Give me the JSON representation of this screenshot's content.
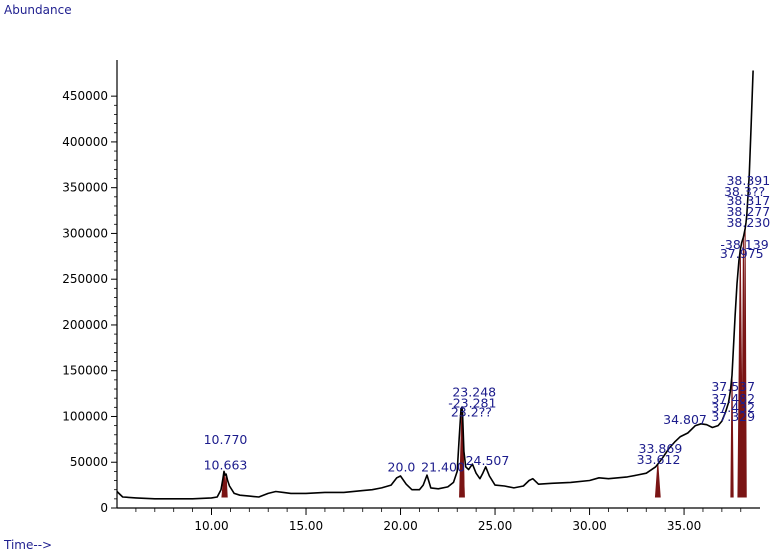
{
  "chart_data": {
    "type": "line",
    "ylabel": "Abundance",
    "xlabel": "Time-->",
    "xlim": [
      5.0,
      38.7
    ],
    "ylim": [
      0,
      460000
    ],
    "x_ticks": [
      "10.00",
      "15.00",
      "20.00",
      "25.00",
      "30.00",
      "35.00"
    ],
    "x_tick_values": [
      10,
      15,
      20,
      25,
      30,
      35
    ],
    "y_ticks": [
      "0",
      "50000",
      "100000",
      "150000",
      "200000",
      "250000",
      "300000",
      "350000",
      "400000",
      "450000"
    ],
    "y_tick_values": [
      0,
      50000,
      100000,
      150000,
      200000,
      250000,
      300000,
      350000,
      400000,
      450000
    ],
    "series": [
      {
        "color": "#000000",
        "x": [
          5.0,
          5.3,
          6.0,
          7.0,
          8.0,
          9.0,
          10.0,
          10.3,
          10.5,
          10.6,
          10.663,
          10.72,
          10.77,
          10.85,
          10.95,
          11.2,
          11.5,
          12.0,
          12.5,
          13.0,
          13.4,
          13.8,
          14.2,
          15.0,
          16.0,
          17.0,
          18.0,
          18.5,
          19.0,
          19.5,
          19.8,
          20.0,
          20.3,
          20.6,
          21.0,
          21.2,
          21.4,
          21.6,
          22.0,
          22.5,
          22.8,
          23.0,
          23.1,
          23.2,
          23.248,
          23.281,
          23.35,
          23.45,
          23.6,
          23.8,
          24.0,
          24.2,
          24.35,
          24.507,
          24.7,
          25.0,
          25.5,
          26.0,
          26.5,
          26.8,
          27.0,
          27.3,
          28.0,
          29.0,
          30.0,
          30.5,
          31.0,
          32.0,
          32.5,
          33.0,
          33.5,
          33.612,
          33.869,
          34.2,
          34.5,
          34.807,
          35.2,
          35.6,
          35.9,
          36.2,
          36.5,
          36.8,
          37.0,
          37.2,
          37.35,
          37.45,
          37.537,
          37.6,
          37.7,
          37.8,
          37.9,
          37.975,
          38.05,
          38.139,
          38.23,
          38.277,
          38.317,
          38.391,
          38.45,
          38.55,
          38.65
        ],
        "y": [
          18000,
          12000,
          11000,
          10000,
          10000,
          10000,
          11000,
          12000,
          20000,
          32000,
          40000,
          36000,
          37000,
          30000,
          24000,
          16000,
          14000,
          13000,
          12000,
          16000,
          18000,
          17000,
          16000,
          16000,
          17000,
          17000,
          19000,
          20000,
          22000,
          25000,
          33000,
          35000,
          26000,
          20000,
          20000,
          25000,
          36000,
          22000,
          21000,
          23000,
          28000,
          40000,
          75000,
          108000,
          110000,
          105000,
          62000,
          45000,
          42000,
          48000,
          38000,
          32000,
          38000,
          45000,
          35000,
          25000,
          24000,
          22000,
          24000,
          30000,
          32000,
          26000,
          27000,
          28000,
          30000,
          33000,
          32000,
          34000,
          36000,
          38000,
          45000,
          48000,
          55000,
          65000,
          72000,
          78000,
          82000,
          90000,
          92000,
          91000,
          88000,
          90000,
          95000,
          105000,
          115000,
          128000,
          145000,
          170000,
          210000,
          245000,
          270000,
          282000,
          290000,
          296000,
          305000,
          312000,
          320000,
          345000,
          365000,
          420000,
          478000
        ]
      }
    ],
    "peaks": [
      {
        "x": 10.663,
        "y": 40000,
        "w": 0.22,
        "label": "10.663"
      },
      {
        "x": 10.77,
        "y": 37000,
        "w": 0.12,
        "label": "10.770"
      },
      {
        "x": 23.248,
        "y": 110000,
        "w": 0.25,
        "label": "23.248"
      },
      {
        "x": 23.281,
        "y": 105000,
        "w": 0.18,
        "label": "23.281"
      },
      {
        "x": 33.612,
        "y": 48000,
        "w": 0.25,
        "label": "33.612"
      },
      {
        "x": 37.537,
        "y": 145000,
        "w": 0.12,
        "label": "37.537"
      },
      {
        "x": 37.975,
        "y": 282000,
        "w": 0.25,
        "label": "37.975"
      },
      {
        "x": 38.139,
        "y": 296000,
        "w": 0.15,
        "label": "38.139"
      },
      {
        "x": 38.23,
        "y": 305000,
        "w": 0.12,
        "label": "38.230"
      }
    ],
    "annotations": [
      {
        "text": "10.770",
        "x": 10.74,
        "y": 70000,
        "anchor": "middle"
      },
      {
        "text": "10.663",
        "x": 10.74,
        "y": 42000,
        "anchor": "middle"
      },
      {
        "text": "20.0",
        "x": 20.05,
        "y": 40000,
        "anchor": "middle"
      },
      {
        "text": "21.400",
        "x": 22.25,
        "y": 40000,
        "anchor": "middle"
      },
      {
        "text": "23.248",
        "x": 23.9,
        "y": 122000,
        "anchor": "middle"
      },
      {
        "text": "-23.281",
        "x": 23.8,
        "y": 110000,
        "anchor": "middle"
      },
      {
        "text": "23.2??",
        "x": 23.75,
        "y": 100000,
        "anchor": "middle"
      },
      {
        "text": "24.507",
        "x": 24.6,
        "y": 47000,
        "anchor": "middle"
      },
      {
        "text": "34.807",
        "x": 35.05,
        "y": 92000,
        "anchor": "middle"
      },
      {
        "text": "33.869",
        "x": 33.75,
        "y": 60000,
        "anchor": "middle"
      },
      {
        "text": "33.612",
        "x": 33.65,
        "y": 48000,
        "anchor": "middle"
      },
      {
        "text": "37.537",
        "x": 37.6,
        "y": 128000,
        "anchor": "middle"
      },
      {
        "text": "37.482",
        "x": 37.6,
        "y": 115000,
        "anchor": "middle"
      },
      {
        "text": "37.432",
        "x": 37.6,
        "y": 105000,
        "anchor": "middle"
      },
      {
        "text": "37.329",
        "x": 37.6,
        "y": 95000,
        "anchor": "middle"
      },
      {
        "text": "38.391",
        "x": 38.4,
        "y": 353000,
        "anchor": "middle"
      },
      {
        "text": "38.3??",
        "x": 38.2,
        "y": 341000,
        "anchor": "middle"
      },
      {
        "text": "38.317",
        "x": 38.4,
        "y": 331000,
        "anchor": "middle"
      },
      {
        "text": "38.277",
        "x": 38.4,
        "y": 319000,
        "anchor": "middle"
      },
      {
        "text": "38.230",
        "x": 38.4,
        "y": 307000,
        "anchor": "middle"
      },
      {
        "text": "-38.139",
        "x": 38.2,
        "y": 283000,
        "anchor": "middle"
      },
      {
        "text": "37.975",
        "x": 38.05,
        "y": 273000,
        "anchor": "middle"
      }
    ],
    "grid": false,
    "legend": "none"
  }
}
